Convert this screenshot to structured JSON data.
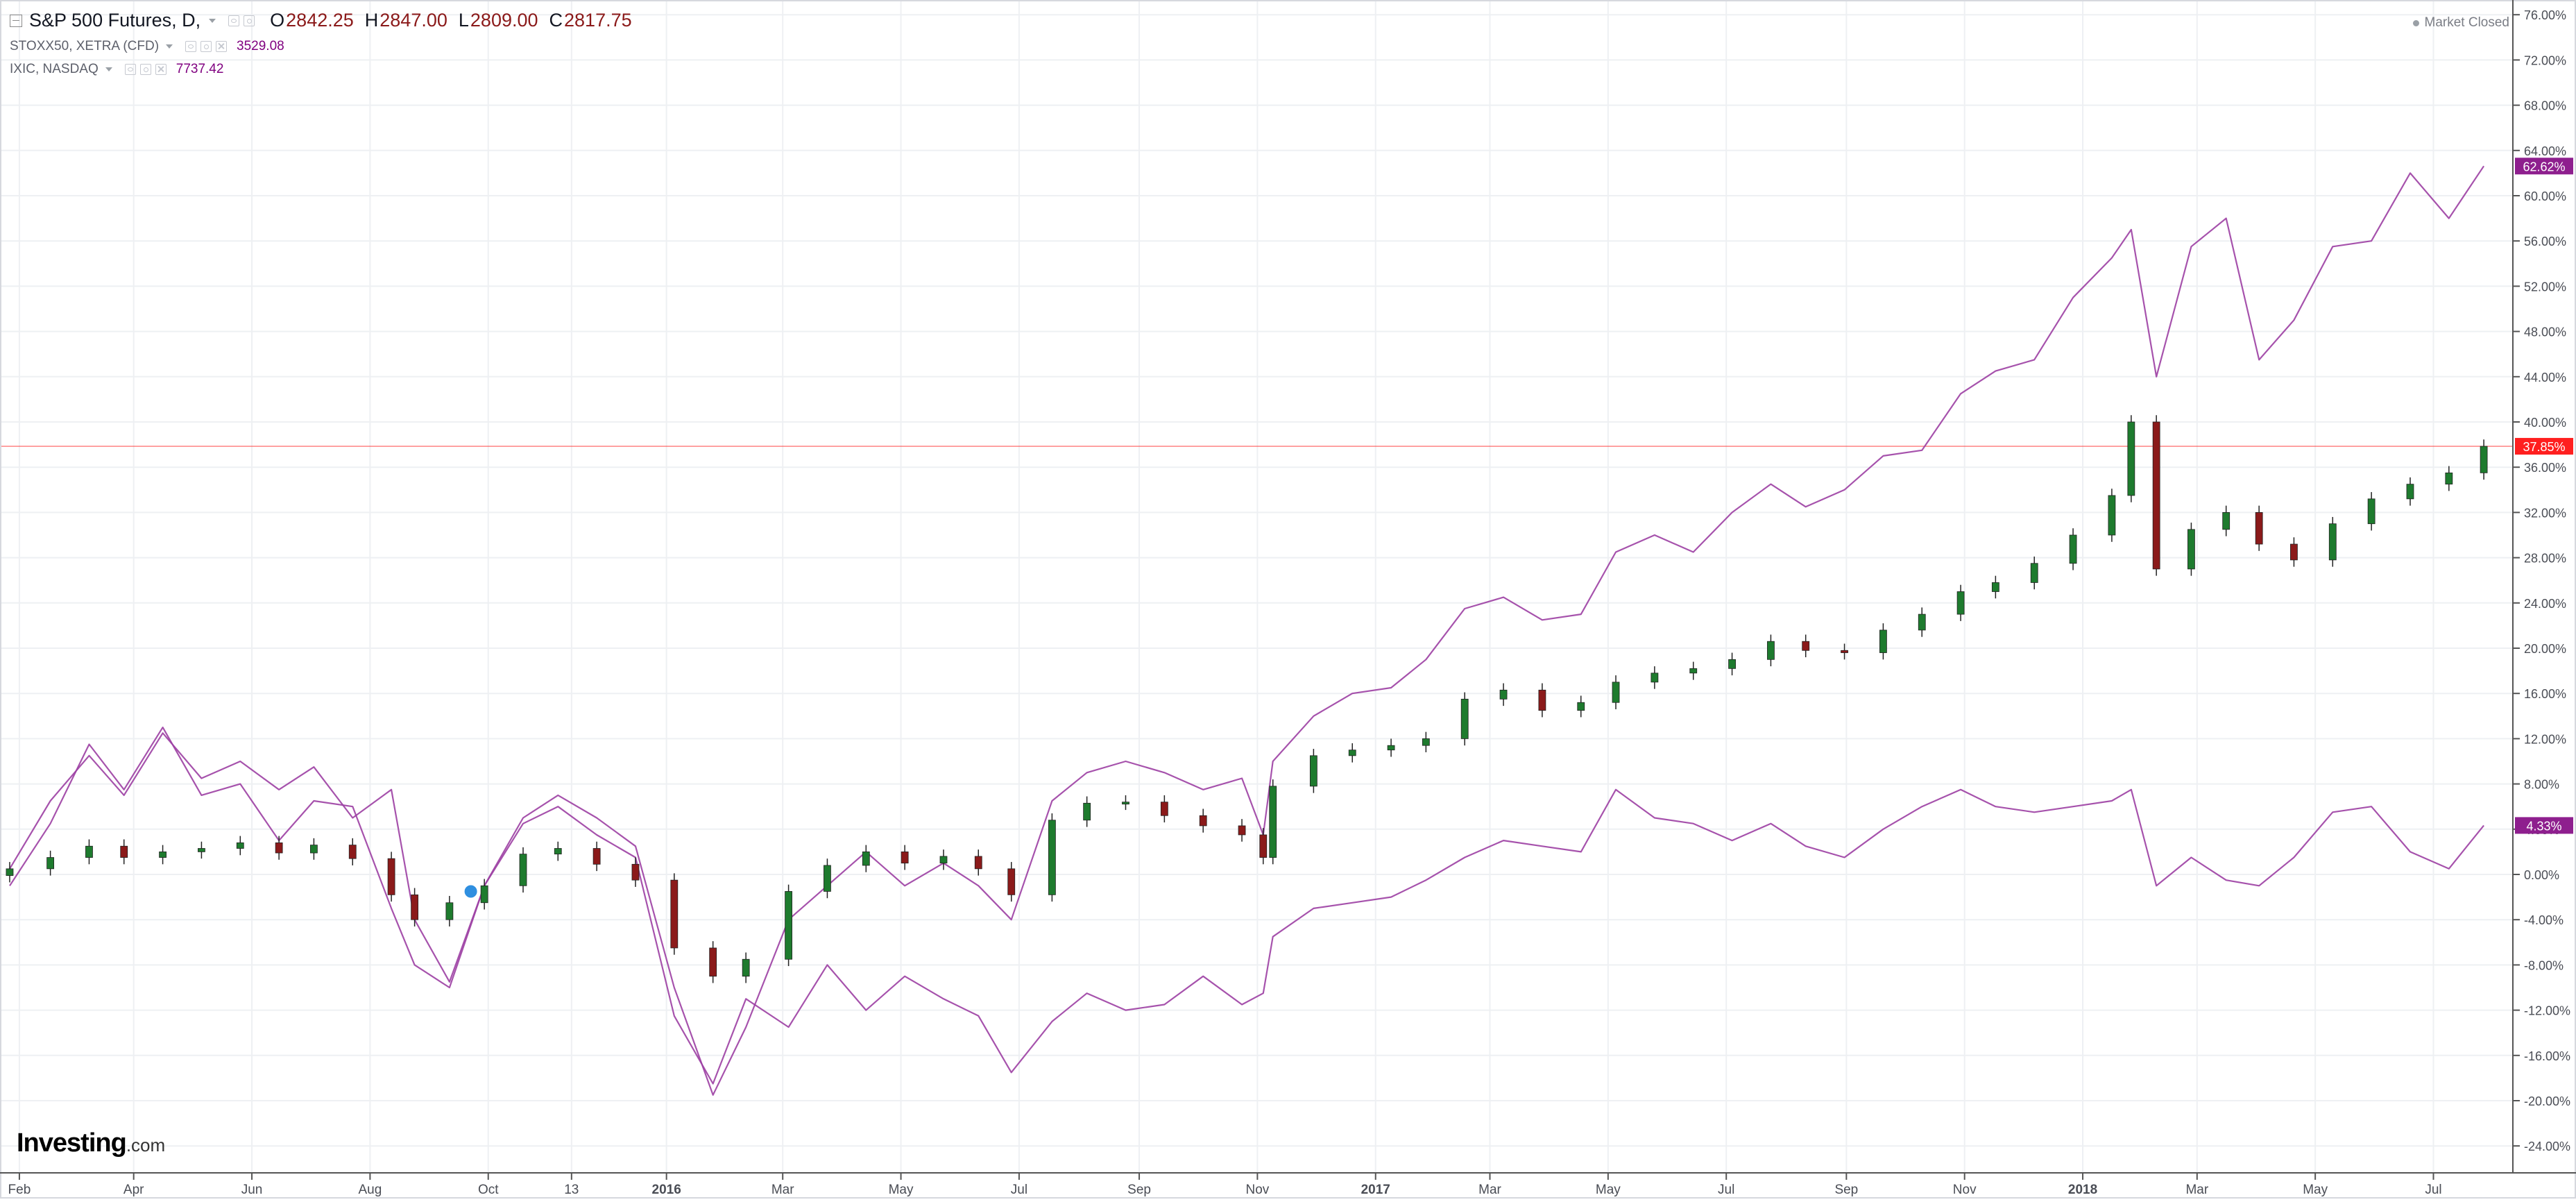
{
  "legend": {
    "main": {
      "title": "S&P 500 Futures, D,",
      "o_label": "O",
      "o_value": "2842.25",
      "h_label": "H",
      "h_value": "2847.00",
      "l_label": "L",
      "l_value": "2809.00",
      "c_label": "C",
      "c_value": "2817.75"
    },
    "compare1": {
      "title": "STOXX50, XETRA (CFD)",
      "value": "3529.08"
    },
    "compare2": {
      "title": "IXIC, NASDAQ",
      "value": "7737.42"
    }
  },
  "status": {
    "market": "Market Closed"
  },
  "logo": {
    "brand": "Investing",
    "suffix": ".com"
  },
  "colors": {
    "up": "#1e7b2e",
    "down": "#8b1a1a",
    "compare": "#9c3fa3",
    "price_line": "#ff3030",
    "badge_purple": "#8e1f8e",
    "badge_red": "#ff1f1f",
    "grid": "#eef0f3"
  },
  "chart_data": {
    "type": "line",
    "title": "S&P 500 Futures, D,",
    "x": [
      "2015-01-27",
      "2015-02-17",
      "2015-03-09",
      "2015-03-27",
      "2015-04-16",
      "2015-05-06",
      "2015-05-26",
      "2015-06-15",
      "2015-07-03",
      "2015-07-23",
      "2015-08-12",
      "2015-08-24",
      "2015-09-11",
      "2015-09-29",
      "2015-10-19",
      "2015-11-06",
      "2015-11-26",
      "2015-12-16",
      "2016-01-05",
      "2016-01-25",
      "2016-02-11",
      "2016-03-04",
      "2016-03-24",
      "2016-04-13",
      "2016-05-03",
      "2016-05-23",
      "2016-06-10",
      "2016-06-27",
      "2016-07-18",
      "2016-08-05",
      "2016-08-25",
      "2016-09-14",
      "2016-10-04",
      "2016-10-24",
      "2016-11-04",
      "2016-11-09",
      "2016-11-30",
      "2016-12-20",
      "2017-01-09",
      "2017-01-27",
      "2017-02-16",
      "2017-03-08",
      "2017-03-28",
      "2017-04-17",
      "2017-05-05",
      "2017-05-25",
      "2017-06-14",
      "2017-07-04",
      "2017-07-24",
      "2017-08-11",
      "2017-08-31",
      "2017-09-20",
      "2017-10-10",
      "2017-10-30",
      "2017-11-17",
      "2017-12-07",
      "2017-12-27",
      "2018-01-16",
      "2018-01-26",
      "2018-02-08",
      "2018-02-26",
      "2018-03-16",
      "2018-04-02",
      "2018-04-20",
      "2018-05-10",
      "2018-05-30",
      "2018-06-19",
      "2018-07-09",
      "2018-07-27"
    ],
    "series": [
      {
        "name": "S&P 500 Futures, D,",
        "type": "candlestick",
        "values": [
          0.5,
          1.5,
          2.5,
          1.5,
          2.0,
          2.3,
          2.8,
          1.9,
          2.6,
          1.4,
          -1.8,
          -4.0,
          -2.5,
          -1.0,
          1.8,
          2.3,
          0.9,
          -0.5,
          -6.5,
          -9.0,
          -7.5,
          -1.5,
          0.8,
          2.0,
          1.0,
          1.6,
          0.5,
          -1.8,
          4.8,
          6.3,
          6.4,
          5.2,
          4.3,
          3.5,
          1.5,
          7.8,
          10.5,
          11.0,
          11.4,
          12.0,
          15.5,
          16.3,
          14.5,
          15.2,
          17.0,
          17.8,
          18.2,
          19.0,
          20.6,
          19.8,
          19.6,
          21.6,
          23.0,
          25.0,
          25.8,
          27.5,
          30.0,
          33.5,
          40.0,
          27.0,
          30.5,
          32.0,
          29.2,
          27.8,
          31.0,
          33.2,
          34.5,
          35.5,
          37.85
        ]
      },
      {
        "name": "IXIC, NASDAQ",
        "type": "line",
        "values": [
          0.5,
          6.5,
          10.5,
          7.0,
          12.5,
          8.5,
          10.0,
          7.5,
          9.5,
          5.0,
          7.5,
          -4.0,
          -9.5,
          -1.0,
          5.0,
          7.0,
          5.0,
          2.5,
          -10.0,
          -19.5,
          -13.5,
          -4.0,
          -1.0,
          2.0,
          -1.0,
          1.0,
          -1.0,
          -4.0,
          6.5,
          9.0,
          10.0,
          9.0,
          7.5,
          8.5,
          3.5,
          10.0,
          14.0,
          16.0,
          16.5,
          19.0,
          23.5,
          24.5,
          22.5,
          23.0,
          28.5,
          30.0,
          28.5,
          32.0,
          34.5,
          32.5,
          34.0,
          37.0,
          37.5,
          42.5,
          44.5,
          45.5,
          51.0,
          54.5,
          57.0,
          44.0,
          55.5,
          58.0,
          45.5,
          49.0,
          55.5,
          56.0,
          62.0,
          58.0,
          62.62
        ]
      },
      {
        "name": "STOXX50, XETRA (CFD)",
        "type": "line",
        "values": [
          -1.0,
          4.5,
          11.5,
          7.5,
          13.0,
          7.0,
          8.0,
          3.0,
          6.5,
          6.0,
          -3.0,
          -8.0,
          -10.0,
          -1.0,
          4.5,
          6.0,
          3.5,
          1.5,
          -12.5,
          -18.5,
          -11.0,
          -13.5,
          -8.0,
          -12.0,
          -9.0,
          -11.0,
          -12.5,
          -17.5,
          -13.0,
          -10.5,
          -12.0,
          -11.5,
          -9.0,
          -11.5,
          -10.5,
          -5.5,
          -3.0,
          -2.5,
          -2.0,
          -0.5,
          1.5,
          3.0,
          2.5,
          2.0,
          7.5,
          5.0,
          4.5,
          3.0,
          4.5,
          2.5,
          1.5,
          4.0,
          6.0,
          7.5,
          6.0,
          5.5,
          6.0,
          6.5,
          7.5,
          -1.0,
          1.5,
          -0.5,
          -1.0,
          1.5,
          5.5,
          6.0,
          2.0,
          0.5,
          4.33
        ]
      }
    ],
    "xlabel": "",
    "ylabel": "",
    "x_tick_labels": [
      "Feb",
      "Apr",
      "Jun",
      "Aug",
      "Oct",
      "13",
      "2016",
      "Mar",
      "May",
      "Jul",
      "Sep",
      "Nov",
      "2017",
      "Mar",
      "May",
      "Jul",
      "Sep",
      "Nov",
      "2018",
      "Mar",
      "May",
      "Jul"
    ],
    "y_tick_labels": [
      "76.00%",
      "72.00%",
      "68.00%",
      "64.00%",
      "60.00%",
      "56.00%",
      "52.00%",
      "48.00%",
      "44.00%",
      "40.00%",
      "36.00%",
      "32.00%",
      "28.00%",
      "24.00%",
      "20.00%",
      "16.00%",
      "12.00%",
      "8.00%",
      "4.00%",
      "0.00%",
      "-4.00%",
      "-8.00%",
      "-12.00%",
      "-16.00%",
      "-20.00%",
      "-24.00%"
    ],
    "ylim": [
      -26,
      77
    ],
    "last_value_labels": [
      "62.62%",
      "37.85%",
      "4.33%"
    ],
    "grid": true,
    "legend_position": "top-left"
  }
}
